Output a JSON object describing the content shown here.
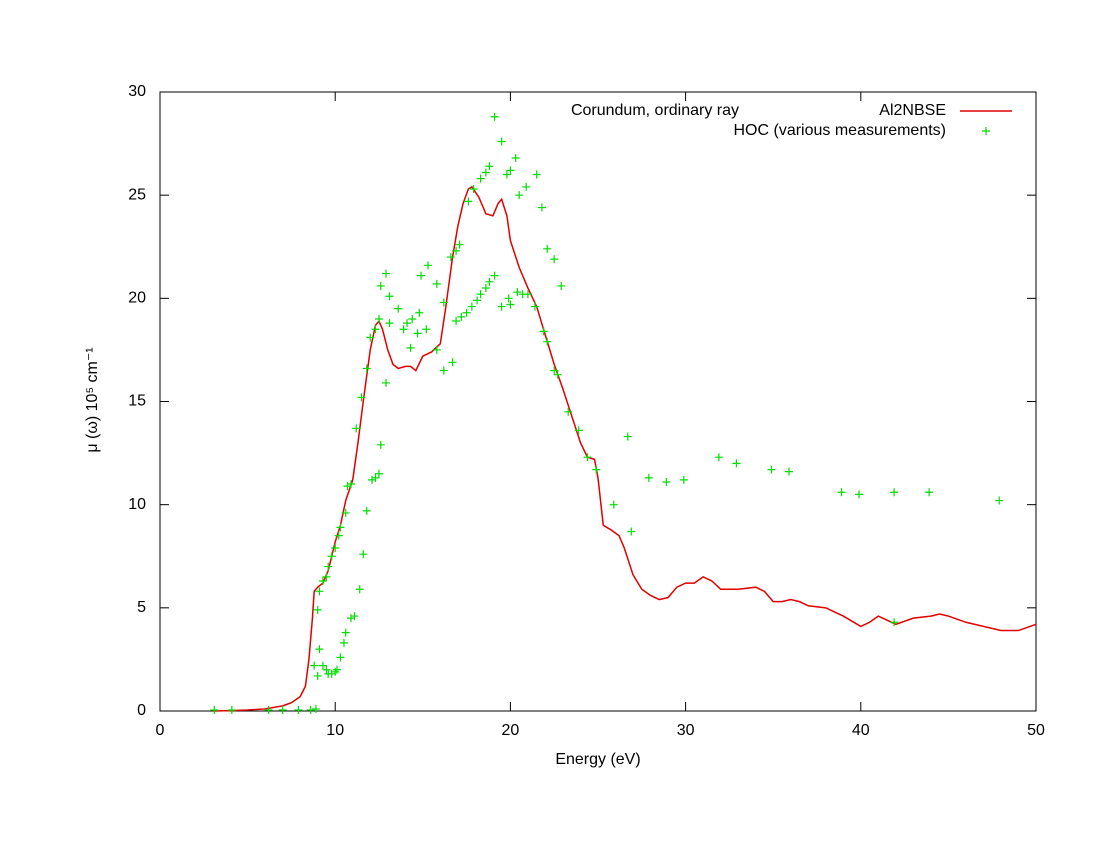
{
  "chart_data": {
    "type": "line",
    "title": "Corundum, ordinary ray",
    "xlabel": "Energy (eV)",
    "ylabel": "μ (ω) 10⁵ cm⁻¹",
    "xlim": [
      0,
      50
    ],
    "ylim": [
      0,
      30
    ],
    "xticks": [
      0,
      10,
      20,
      30,
      40,
      50
    ],
    "yticks": [
      0,
      5,
      10,
      15,
      20,
      25,
      30
    ],
    "legend": "top-right",
    "series": [
      {
        "name": "Al2NBSE",
        "type": "line",
        "color": "#e00000",
        "x": [
          3,
          4,
          5,
          6,
          7,
          7.5,
          8,
          8.3,
          8.5,
          8.7,
          8.8,
          9.0,
          9.3,
          9.6,
          9.8,
          10.0,
          10.3,
          10.6,
          11.0,
          11.3,
          11.6,
          12.0,
          12.3,
          12.5,
          12.7,
          13.0,
          13.3,
          13.6,
          14.0,
          14.3,
          14.6,
          15.0,
          15.5,
          16.0,
          16.3,
          16.7,
          17.0,
          17.3,
          17.6,
          17.8,
          18.2,
          18.6,
          19.0,
          19.3,
          19.5,
          19.8,
          20.0,
          20.5,
          21.0,
          21.5,
          22.0,
          22.5,
          23.0,
          23.5,
          24.0,
          24.4,
          24.8,
          25.0,
          25.3,
          25.7,
          26.2,
          26.5,
          27.0,
          27.5,
          28.0,
          28.5,
          29.0,
          29.5,
          30.0,
          30.5,
          31.0,
          31.5,
          32.0,
          33.0,
          34.0,
          34.5,
          35.0,
          35.5,
          36.0,
          36.5,
          37.0,
          38.0,
          39.0,
          40.0,
          40.5,
          41.0,
          41.5,
          42.0,
          43.0,
          44.0,
          44.5,
          45.0,
          46.0,
          47.0,
          48.0,
          49.0,
          50.0
        ],
        "values": [
          0,
          0.02,
          0.05,
          0.1,
          0.25,
          0.4,
          0.7,
          1.2,
          2.5,
          4.5,
          5.8,
          6.0,
          6.2,
          6.8,
          7.5,
          8.2,
          9.0,
          10.2,
          11.2,
          13.0,
          15.0,
          17.5,
          18.7,
          18.9,
          18.5,
          17.5,
          16.8,
          16.6,
          16.7,
          16.7,
          16.5,
          17.2,
          17.4,
          17.8,
          19.5,
          22.0,
          23.5,
          24.6,
          25.3,
          25.4,
          24.9,
          24.1,
          24.0,
          24.6,
          24.8,
          24.0,
          22.8,
          21.5,
          20.5,
          19.6,
          18.2,
          16.8,
          15.6,
          14.3,
          13.0,
          12.3,
          12.2,
          11.3,
          9.0,
          8.8,
          8.5,
          7.9,
          6.6,
          5.9,
          5.6,
          5.4,
          5.5,
          6.0,
          6.2,
          6.2,
          6.5,
          6.3,
          5.9,
          5.9,
          6.0,
          5.8,
          5.3,
          5.3,
          5.4,
          5.3,
          5.1,
          5.0,
          4.6,
          4.1,
          4.3,
          4.6,
          4.4,
          4.2,
          4.5,
          4.6,
          4.7,
          4.6,
          4.3,
          4.1,
          3.9,
          3.9,
          4.2
        ]
      },
      {
        "name": "HOC (various measurements)",
        "type": "scatter",
        "color": "#00dd00",
        "x": [
          3.1,
          4.1,
          6.2,
          7.0,
          7.9,
          8.6,
          8.9,
          8.8,
          9.0,
          9.0,
          9.1,
          9.1,
          9.3,
          9.3,
          9.5,
          9.5,
          9.6,
          9.6,
          9.8,
          9.8,
          10.0,
          10.0,
          10.1,
          10.2,
          10.3,
          10.3,
          10.5,
          10.6,
          10.6,
          10.7,
          10.9,
          10.9,
          11.1,
          11.2,
          11.4,
          11.5,
          11.6,
          11.8,
          11.8,
          12.0,
          12.1,
          12.3,
          12.3,
          12.5,
          12.5,
          12.6,
          12.6,
          12.9,
          12.9,
          13.1,
          13.1,
          13.6,
          13.9,
          14.1,
          14.3,
          14.4,
          14.7,
          14.8,
          14.9,
          15.2,
          15.3,
          15.8,
          15.8,
          16.2,
          16.2,
          16.6,
          16.7,
          16.9,
          16.9,
          17.1,
          17.2,
          17.6,
          17.5,
          17.8,
          17.9,
          18.1,
          18.3,
          18.3,
          18.6,
          18.6,
          18.8,
          18.8,
          19.1,
          19.1,
          19.5,
          19.5,
          19.8,
          19.9,
          20.0,
          20.0,
          20.3,
          20.4,
          20.5,
          20.7,
          20.9,
          21.0,
          21.4,
          21.5,
          21.8,
          21.9,
          22.1,
          22.1,
          22.5,
          22.5,
          22.7,
          22.9,
          23.3,
          23.9,
          24.4,
          24.9,
          25.9,
          26.7,
          26.9,
          27.9,
          28.9,
          29.9,
          31.9,
          32.9,
          34.9,
          35.9,
          38.9,
          39.9,
          41.9,
          43.9,
          47.9,
          41.9
        ],
        "values": [
          0.05,
          0.05,
          0.05,
          0.05,
          0.05,
          0.05,
          0.1,
          2.2,
          1.7,
          4.9,
          3.0,
          5.8,
          2.2,
          6.3,
          2.0,
          6.5,
          1.8,
          7.0,
          1.8,
          7.5,
          1.9,
          7.9,
          2.0,
          8.5,
          2.6,
          8.9,
          3.3,
          9.6,
          3.8,
          10.9,
          4.5,
          11.0,
          4.6,
          13.7,
          5.9,
          15.2,
          7.6,
          16.6,
          9.7,
          18.1,
          11.2,
          11.3,
          18.5,
          11.5,
          19.0,
          12.9,
          20.6,
          15.9,
          21.2,
          20.1,
          18.8,
          19.5,
          18.5,
          18.8,
          17.6,
          19.0,
          18.3,
          19.3,
          21.1,
          18.5,
          21.6,
          20.7,
          17.5,
          19.8,
          16.5,
          22.0,
          16.9,
          22.3,
          18.9,
          22.6,
          19.1,
          24.7,
          19.3,
          19.6,
          25.3,
          19.9,
          25.8,
          20.2,
          26.1,
          20.5,
          26.4,
          20.8,
          28.8,
          21.1,
          27.6,
          19.6,
          26.0,
          20.0,
          26.2,
          19.7,
          26.8,
          20.3,
          25.0,
          20.2,
          25.4,
          20.2,
          19.6,
          26.0,
          24.4,
          18.4,
          22.4,
          17.9,
          21.9,
          16.5,
          16.3,
          20.6,
          14.5,
          13.6,
          12.3,
          11.7,
          10.0,
          13.3,
          8.7,
          11.3,
          11.1,
          11.2,
          12.3,
          12.0,
          11.7,
          11.6,
          10.6,
          10.5,
          10.6,
          10.6,
          10.2,
          4.3
        ]
      }
    ]
  }
}
